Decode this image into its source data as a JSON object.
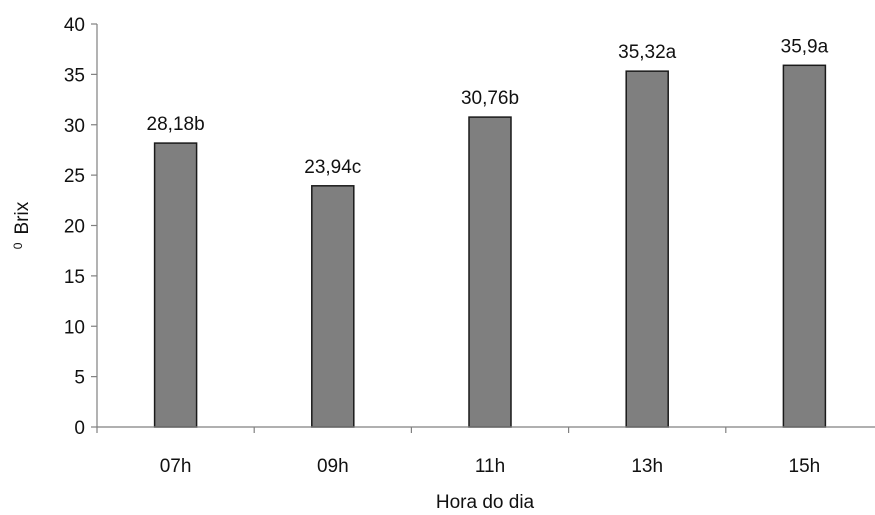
{
  "chart_data": {
    "type": "bar",
    "title": "",
    "xlabel": "Hora do dia",
    "ylabel": "Brix",
    "ylabel_superscript": "0",
    "categories": [
      "07h",
      "09h",
      "11h",
      "13h",
      "15h"
    ],
    "values": [
      28.18,
      23.94,
      30.76,
      35.32,
      35.9
    ],
    "data_labels": [
      "28,18b",
      "23,94c",
      "30,76b",
      "35,32a",
      "35,9a"
    ],
    "ylim": [
      0,
      40
    ],
    "yticks": [
      0,
      5,
      10,
      15,
      20,
      25,
      30,
      35,
      40
    ],
    "ytick_labels": [
      "0",
      "5",
      "10",
      "15",
      "20",
      "25",
      "30",
      "35",
      "40"
    ],
    "grid": false,
    "legend": "none",
    "colors": {
      "bar": "#7f7f7f",
      "bar_edge": "#1a1a1a",
      "axis": "#808080",
      "text": "#111111"
    }
  }
}
